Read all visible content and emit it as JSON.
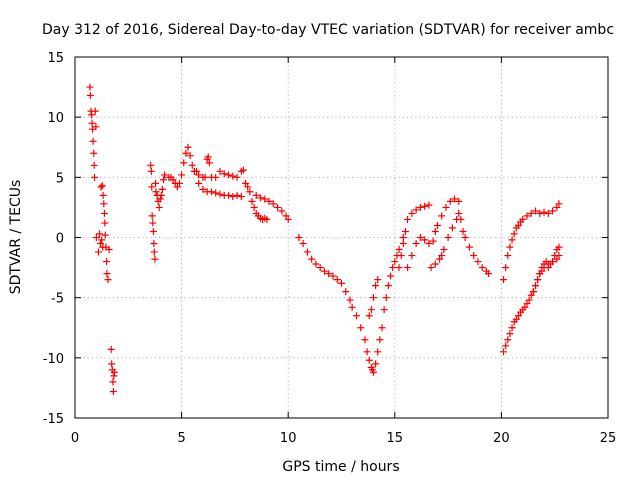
{
  "chart_data": {
    "type": "scatter",
    "title": "Day 312 of 2016, Sidereal Day-to-day VTEC variation (SDTVAR) for receiver ambc",
    "xlabel": "GPS time / hours",
    "ylabel": "SDTVAR / TECUs",
    "xlim": [
      0,
      25
    ],
    "ylim": [
      -15,
      15
    ],
    "xticks": [
      0,
      5,
      10,
      15,
      20,
      25
    ],
    "yticks": [
      -15,
      -10,
      -5,
      0,
      5,
      10,
      15
    ],
    "xtick_labels": [
      "0",
      "5",
      "10",
      "15",
      "20",
      "25"
    ],
    "ytick_labels": [
      "-15",
      "-10",
      "-5",
      "0",
      "5",
      "10",
      "15"
    ],
    "grid": true,
    "legend": "none",
    "marker": "+",
    "color": "#ff0000",
    "series": [
      {
        "name": "SDTVAR",
        "x": [
          0.7,
          0.72,
          0.75,
          0.78,
          0.8,
          0.82,
          0.85,
          0.88,
          0.9,
          0.92,
          0.95,
          0.98,
          1.0,
          1.1,
          1.15,
          1.2,
          1.22,
          1.25,
          1.28,
          1.3,
          1.32,
          1.35,
          1.38,
          1.4,
          1.42,
          1.45,
          1.48,
          1.5,
          1.55,
          1.6,
          1.7,
          1.72,
          1.75,
          1.78,
          1.8,
          1.82,
          1.85,
          3.55,
          3.58,
          3.6,
          3.62,
          3.65,
          3.68,
          3.7,
          3.72,
          3.75,
          3.78,
          3.8,
          3.85,
          3.9,
          3.95,
          4.0,
          4.05,
          4.1,
          4.15,
          4.2,
          4.4,
          4.5,
          4.6,
          4.7,
          4.8,
          4.9,
          5.0,
          5.1,
          5.2,
          5.3,
          5.4,
          5.5,
          5.6,
          5.7,
          5.8,
          6.0,
          6.1,
          6.2,
          6.25,
          6.3,
          6.4,
          6.6,
          6.8,
          7.0,
          7.2,
          7.4,
          7.6,
          7.8,
          7.9,
          5.6,
          5.8,
          6.0,
          6.2,
          6.4,
          6.6,
          6.8,
          7.0,
          7.2,
          7.4,
          7.6,
          7.8,
          8.0,
          8.1,
          8.2,
          8.3,
          8.4,
          8.5,
          8.6,
          8.7,
          8.8,
          8.9,
          9.0,
          8.5,
          8.7,
          8.9,
          9.1,
          9.3,
          9.5,
          9.7,
          9.9,
          10.0,
          10.5,
          10.7,
          10.9,
          11.1,
          11.3,
          11.5,
          11.7,
          11.9,
          12.1,
          12.3,
          12.5,
          12.7,
          12.9,
          13.0,
          13.2,
          13.4,
          13.6,
          13.7,
          13.8,
          13.9,
          13.95,
          14.0,
          14.1,
          14.2,
          14.3,
          14.4,
          14.5,
          14.6,
          14.7,
          14.8,
          14.9,
          15.0,
          15.1,
          15.2,
          15.4,
          13.8,
          13.9,
          14.0,
          14.1,
          14.2,
          15.2,
          15.3,
          15.4,
          15.5,
          15.6,
          15.8,
          16.0,
          16.2,
          16.4,
          16.6,
          15.6,
          15.8,
          16.0,
          16.2,
          16.4,
          16.6,
          16.8,
          16.9,
          17.0,
          17.2,
          17.4,
          17.6,
          17.8,
          18.0,
          16.7,
          16.9,
          17.1,
          17.2,
          17.3,
          17.5,
          17.7,
          17.9,
          18.0,
          18.1,
          18.2,
          18.3,
          18.5,
          18.7,
          18.9,
          19.1,
          19.3,
          19.4,
          20.1,
          20.2,
          20.3,
          20.4,
          20.5,
          20.6,
          20.7,
          20.8,
          20.9,
          21.0,
          21.2,
          21.4,
          21.6,
          21.8,
          22.0,
          22.2,
          22.4,
          22.6,
          22.7,
          20.1,
          20.2,
          20.3,
          20.4,
          20.5,
          20.6,
          20.7,
          20.8,
          20.9,
          21.0,
          21.1,
          21.2,
          21.3,
          21.4,
          21.5,
          21.6,
          21.7,
          21.8,
          21.9,
          22.0,
          22.2,
          22.4,
          22.6,
          22.7,
          21.5,
          21.6,
          21.7,
          21.8,
          21.9,
          22.0,
          22.1,
          22.2,
          22.3,
          22.4,
          22.5,
          22.6,
          22.7
        ],
        "y": [
          12.5,
          11.8,
          10.5,
          10.2,
          9.5,
          9.0,
          8.0,
          7.0,
          6.0,
          5.0,
          10.5,
          9.2,
          0.0,
          -1.2,
          0.3,
          -0.5,
          4.2,
          -0.2,
          4.3,
          -0.8,
          3.5,
          2.8,
          2.0,
          1.2,
          0.2,
          -0.8,
          -2.0,
          -3.0,
          -3.5,
          -1.0,
          -9.3,
          -10.5,
          -11.0,
          -12.0,
          -12.8,
          -11.5,
          -11.2,
          6.0,
          5.5,
          4.2,
          1.8,
          1.2,
          0.5,
          -0.5,
          -1.2,
          -1.8,
          4.5,
          3.8,
          3.5,
          3.0,
          2.5,
          3.2,
          3.5,
          4.0,
          4.8,
          5.2,
          5.0,
          5.0,
          4.8,
          4.5,
          4.2,
          4.5,
          5.2,
          6.2,
          7.0,
          7.5,
          6.8,
          6.0,
          5.5,
          5.5,
          5.2,
          5.0,
          5.0,
          6.5,
          6.7,
          6.2,
          5.0,
          5.0,
          5.5,
          5.3,
          5.2,
          5.1,
          5.0,
          5.5,
          5.6,
          5.5,
          4.5,
          4.0,
          3.8,
          3.8,
          3.7,
          3.6,
          3.5,
          3.5,
          3.4,
          3.5,
          3.4,
          4.5,
          4.2,
          3.8,
          3.0,
          2.5,
          2.0,
          1.8,
          1.6,
          1.5,
          1.6,
          1.5,
          3.5,
          3.3,
          3.2,
          3.0,
          2.8,
          2.5,
          2.2,
          1.8,
          1.5,
          0.0,
          -0.5,
          -1.2,
          -1.8,
          -2.2,
          -2.5,
          -2.8,
          -3.0,
          -3.2,
          -3.5,
          -3.8,
          -4.5,
          -5.2,
          -5.8,
          -6.5,
          -7.5,
          -8.5,
          -9.5,
          -10.2,
          -10.8,
          -11.0,
          -11.2,
          -10.5,
          -9.5,
          -8.5,
          -7.5,
          -6.0,
          -5.0,
          -4.0,
          -3.2,
          -2.5,
          -2.0,
          -1.5,
          -1.0,
          0.0,
          -6.5,
          -6.0,
          -5.0,
          -4.0,
          -3.5,
          -2.5,
          -1.5,
          -0.5,
          0.5,
          1.5,
          2.0,
          2.3,
          2.5,
          2.6,
          2.7,
          -2.5,
          -1.5,
          -0.5,
          0.0,
          -0.2,
          -0.5,
          -0.3,
          0.5,
          1.0,
          1.8,
          2.5,
          3.0,
          3.2,
          3.0,
          -2.5,
          -2.2,
          -1.8,
          -1.5,
          -1.0,
          0.0,
          0.8,
          1.5,
          2.0,
          1.5,
          0.5,
          0.0,
          -0.8,
          -1.5,
          -2.0,
          -2.5,
          -2.8,
          -3.0,
          -3.5,
          -2.5,
          -1.5,
          -0.8,
          -0.2,
          0.3,
          0.8,
          1.0,
          1.3,
          1.5,
          1.8,
          2.0,
          2.2,
          2.0,
          2.1,
          2.0,
          2.2,
          2.5,
          2.8,
          -9.5,
          -9.0,
          -8.5,
          -8.0,
          -7.5,
          -7.0,
          -6.8,
          -6.5,
          -6.2,
          -6.0,
          -5.8,
          -5.5,
          -5.2,
          -4.8,
          -4.5,
          -4.0,
          -3.5,
          -3.0,
          -2.8,
          -2.5,
          -2.2,
          -2.0,
          -1.8,
          -1.5,
          -4.5,
          -4.0,
          -3.5,
          -3.0,
          -2.5,
          -2.2,
          -2.0,
          -2.5,
          -2.2,
          -2.0,
          -1.5,
          -1.0,
          -0.8
        ]
      }
    ]
  }
}
